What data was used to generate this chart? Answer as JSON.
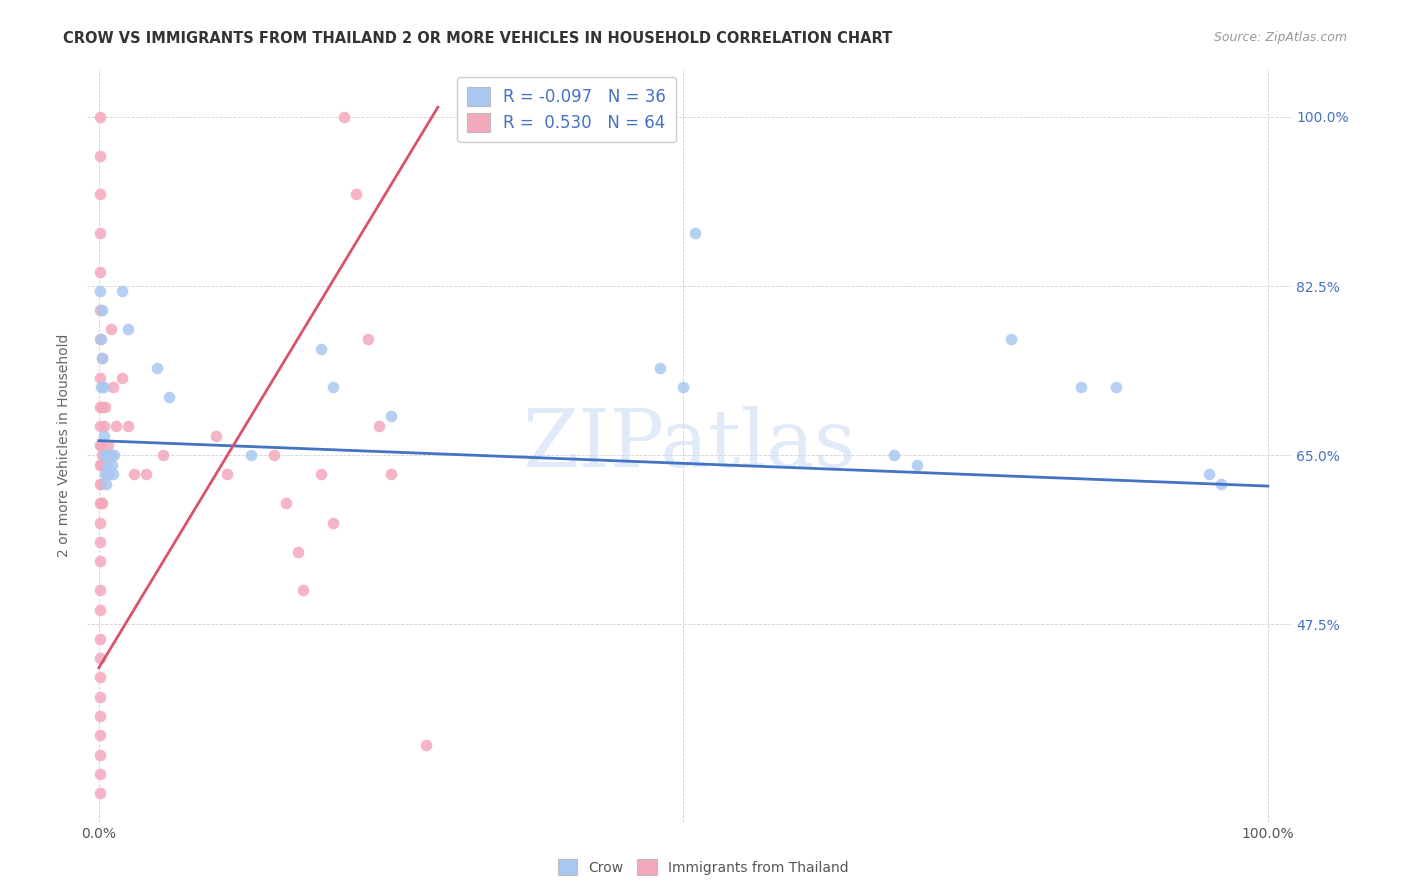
{
  "title": "CROW VS IMMIGRANTS FROM THAILAND 2 OR MORE VEHICLES IN HOUSEHOLD CORRELATION CHART",
  "source": "Source: ZipAtlas.com",
  "ylabel": "2 or more Vehicles in Household",
  "watermark": "ZIPatlas",
  "crow_color": "#a8c8f0",
  "thai_color": "#f4a8bc",
  "crow_line_color": "#4472c4",
  "thai_line_color": "#d9536a",
  "legend_crow_color": "#a8c8f0",
  "legend_thai_color": "#f4a8bc",
  "legend_text_color": "#4472c4",
  "ytick_vals": [
    0.475,
    0.65,
    0.825,
    1.0
  ],
  "ytick_labels": [
    "47.5%",
    "65.0%",
    "82.5%",
    "100.0%"
  ],
  "xlim": [
    -0.01,
    1.02
  ],
  "ylim": [
    0.27,
    1.05
  ],
  "crow_pts": [
    [
      0.001,
      0.82
    ],
    [
      0.002,
      0.77
    ],
    [
      0.002,
      0.72
    ],
    [
      0.003,
      0.8
    ],
    [
      0.003,
      0.75
    ],
    [
      0.004,
      0.67
    ],
    [
      0.004,
      0.72
    ],
    [
      0.005,
      0.65
    ],
    [
      0.005,
      0.63
    ],
    [
      0.006,
      0.65
    ],
    [
      0.006,
      0.62
    ],
    [
      0.007,
      0.64
    ],
    [
      0.008,
      0.63
    ],
    [
      0.009,
      0.65
    ],
    [
      0.01,
      0.65
    ],
    [
      0.011,
      0.64
    ],
    [
      0.012,
      0.63
    ],
    [
      0.013,
      0.65
    ],
    [
      0.02,
      0.82
    ],
    [
      0.025,
      0.78
    ],
    [
      0.05,
      0.74
    ],
    [
      0.06,
      0.71
    ],
    [
      0.13,
      0.65
    ],
    [
      0.19,
      0.76
    ],
    [
      0.2,
      0.72
    ],
    [
      0.25,
      0.69
    ],
    [
      0.48,
      0.74
    ],
    [
      0.5,
      0.72
    ],
    [
      0.51,
      0.88
    ],
    [
      0.68,
      0.65
    ],
    [
      0.7,
      0.64
    ],
    [
      0.78,
      0.77
    ],
    [
      0.84,
      0.72
    ],
    [
      0.87,
      0.72
    ],
    [
      0.95,
      0.63
    ],
    [
      0.96,
      0.62
    ]
  ],
  "thai_pts": [
    [
      0.001,
      1.0
    ],
    [
      0.001,
      0.96
    ],
    [
      0.001,
      0.92
    ],
    [
      0.001,
      0.88
    ],
    [
      0.001,
      0.84
    ],
    [
      0.001,
      0.8
    ],
    [
      0.001,
      0.77
    ],
    [
      0.001,
      0.73
    ],
    [
      0.001,
      0.7
    ],
    [
      0.001,
      0.68
    ],
    [
      0.001,
      0.66
    ],
    [
      0.001,
      0.64
    ],
    [
      0.001,
      0.62
    ],
    [
      0.001,
      0.6
    ],
    [
      0.001,
      0.58
    ],
    [
      0.001,
      0.56
    ],
    [
      0.001,
      0.54
    ],
    [
      0.001,
      0.51
    ],
    [
      0.001,
      0.49
    ],
    [
      0.001,
      0.46
    ],
    [
      0.001,
      0.44
    ],
    [
      0.001,
      0.42
    ],
    [
      0.001,
      0.4
    ],
    [
      0.001,
      0.38
    ],
    [
      0.001,
      0.36
    ],
    [
      0.001,
      0.34
    ],
    [
      0.001,
      0.32
    ],
    [
      0.001,
      0.3
    ],
    [
      0.002,
      0.66
    ],
    [
      0.002,
      0.64
    ],
    [
      0.002,
      0.62
    ],
    [
      0.002,
      0.6
    ],
    [
      0.003,
      0.75
    ],
    [
      0.003,
      0.7
    ],
    [
      0.003,
      0.65
    ],
    [
      0.003,
      0.6
    ],
    [
      0.004,
      0.68
    ],
    [
      0.004,
      0.64
    ],
    [
      0.005,
      0.7
    ],
    [
      0.006,
      0.65
    ],
    [
      0.007,
      0.63
    ],
    [
      0.008,
      0.66
    ],
    [
      0.01,
      0.78
    ],
    [
      0.012,
      0.72
    ],
    [
      0.015,
      0.68
    ],
    [
      0.02,
      0.73
    ],
    [
      0.025,
      0.68
    ],
    [
      0.03,
      0.63
    ],
    [
      0.04,
      0.63
    ],
    [
      0.055,
      0.65
    ],
    [
      0.1,
      0.67
    ],
    [
      0.11,
      0.63
    ],
    [
      0.15,
      0.65
    ],
    [
      0.16,
      0.6
    ],
    [
      0.17,
      0.55
    ],
    [
      0.175,
      0.51
    ],
    [
      0.19,
      0.63
    ],
    [
      0.2,
      0.58
    ],
    [
      0.21,
      1.0
    ],
    [
      0.22,
      0.92
    ],
    [
      0.23,
      0.77
    ],
    [
      0.24,
      0.68
    ],
    [
      0.25,
      0.63
    ],
    [
      0.28,
      0.35
    ]
  ],
  "crow_line_x": [
    0.0,
    1.0
  ],
  "crow_line_y": [
    0.665,
    0.618
  ],
  "thai_line_x": [
    0.0,
    0.29
  ],
  "thai_line_y": [
    0.43,
    1.01
  ],
  "grid_color": "#cccccc",
  "title_fontsize": 10.5,
  "source_fontsize": 9,
  "axis_fontsize": 10,
  "legend_fontsize": 12
}
